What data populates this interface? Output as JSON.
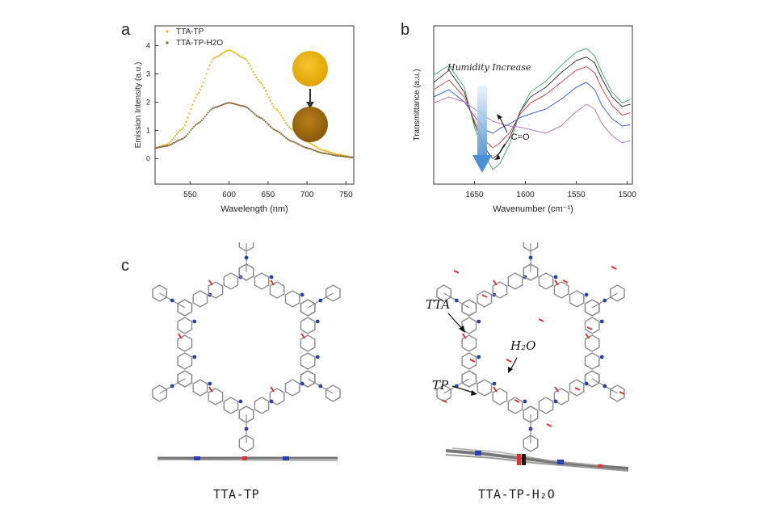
{
  "panels": {
    "a": "a",
    "b": "b",
    "c": "c"
  },
  "chart_data": [
    {
      "type": "scatter",
      "xlabel": "Wavelength (nm)",
      "ylabel": "Emission Intensity (a.u.)",
      "xlim": [
        505,
        760
      ],
      "ylim": [
        -0.9,
        4.7
      ],
      "xticks": [
        550,
        600,
        650,
        700,
        750
      ],
      "yticks": [
        0,
        1,
        2,
        3,
        4
      ],
      "legend_position": "top-left",
      "series": [
        {
          "name": "TTA-TP",
          "color": "#e8b923",
          "x": [
            505,
            520,
            540,
            560,
            580,
            600,
            620,
            640,
            660,
            680,
            700,
            720,
            740,
            760
          ],
          "values": [
            0.38,
            0.5,
            1.05,
            2.3,
            3.55,
            3.85,
            3.55,
            2.7,
            1.75,
            1.05,
            0.6,
            0.3,
            0.15,
            0.05
          ]
        },
        {
          "name": "TTA-TP-H2O",
          "color": "#8a6a3a",
          "x": [
            505,
            520,
            540,
            560,
            580,
            600,
            620,
            640,
            660,
            680,
            700,
            720,
            740,
            760
          ],
          "values": [
            0.38,
            0.45,
            0.7,
            1.25,
            1.8,
            1.98,
            1.85,
            1.45,
            1.0,
            0.62,
            0.38,
            0.2,
            0.1,
            0.04
          ]
        }
      ]
    },
    {
      "type": "line",
      "xlabel": "Wavenumber (cm⁻¹)",
      "ylabel": "Transmittance (a.u.)",
      "xlim": [
        1690,
        1495
      ],
      "xticks": [
        1650,
        1600,
        1550,
        1500
      ],
      "annotations": [
        "Humidity Increase",
        "-C=O"
      ],
      "series": [
        {
          "color": "#4cae6b",
          "x": [
            1690,
            1675,
            1660,
            1650,
            1640,
            1632,
            1625,
            1615,
            1605,
            1595,
            1580,
            1565,
            1550,
            1540,
            1532,
            1525,
            1515,
            1505,
            1497
          ],
          "values": [
            0.78,
            0.86,
            0.68,
            0.35,
            0.12,
            0.0,
            0.05,
            0.22,
            0.48,
            0.64,
            0.73,
            0.86,
            0.97,
            1.0,
            0.94,
            0.8,
            0.64,
            0.55,
            0.58
          ]
        },
        {
          "color": "#3a3a3a",
          "x": [
            1690,
            1675,
            1660,
            1650,
            1640,
            1632,
            1625,
            1615,
            1605,
            1595,
            1580,
            1565,
            1550,
            1540,
            1532,
            1525,
            1515,
            1505,
            1497
          ],
          "values": [
            0.72,
            0.82,
            0.64,
            0.38,
            0.18,
            0.09,
            0.14,
            0.27,
            0.48,
            0.6,
            0.68,
            0.8,
            0.9,
            0.93,
            0.88,
            0.75,
            0.6,
            0.52,
            0.54
          ]
        },
        {
          "color": "#d64a4a",
          "x": [
            1690,
            1675,
            1660,
            1650,
            1640,
            1632,
            1625,
            1615,
            1605,
            1595,
            1580,
            1565,
            1550,
            1540,
            1532,
            1525,
            1515,
            1505,
            1497
          ],
          "values": [
            0.66,
            0.74,
            0.6,
            0.4,
            0.24,
            0.18,
            0.22,
            0.31,
            0.46,
            0.55,
            0.62,
            0.72,
            0.82,
            0.85,
            0.8,
            0.67,
            0.53,
            0.45,
            0.47
          ]
        },
        {
          "color": "#3d68c9",
          "x": [
            1690,
            1675,
            1660,
            1650,
            1640,
            1632,
            1625,
            1615,
            1605,
            1595,
            1580,
            1565,
            1550,
            1540,
            1532,
            1525,
            1515,
            1505,
            1497
          ],
          "values": [
            0.6,
            0.66,
            0.56,
            0.44,
            0.33,
            0.3,
            0.34,
            0.38,
            0.43,
            0.46,
            0.5,
            0.58,
            0.68,
            0.72,
            0.66,
            0.53,
            0.42,
            0.36,
            0.37
          ]
        },
        {
          "color": "#b07cc6",
          "x": [
            1690,
            1675,
            1660,
            1650,
            1640,
            1632,
            1625,
            1615,
            1605,
            1595,
            1580,
            1565,
            1550,
            1540,
            1532,
            1525,
            1515,
            1505,
            1497
          ],
          "values": [
            0.55,
            0.6,
            0.56,
            0.5,
            0.44,
            0.4,
            0.38,
            0.36,
            0.35,
            0.33,
            0.3,
            0.36,
            0.48,
            0.54,
            0.5,
            0.38,
            0.28,
            0.22,
            0.24
          ]
        }
      ]
    }
  ],
  "structure": {
    "labels": {
      "tta": "TTA",
      "tp": "TP",
      "h2o": "H₂O"
    },
    "captions": {
      "left": "TTA-TP",
      "right": "TTA-TP-H₂O"
    }
  }
}
